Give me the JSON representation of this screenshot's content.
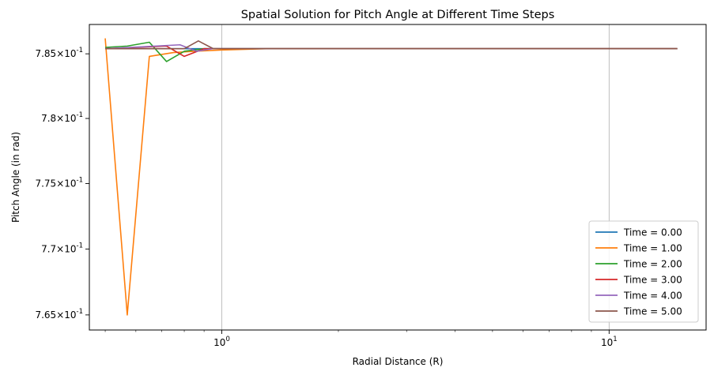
{
  "chart_data": {
    "type": "line",
    "title": "Spatial Solution for Pitch Angle at Different Time Steps",
    "xlabel": "Radial Distance (R)",
    "ylabel": "Pitch Angle (in rad)",
    "xscale": "log",
    "yscale": "log",
    "xlim": [
      0.455,
      17.8
    ],
    "ylim": [
      0.76386,
      0.78728
    ],
    "xticks": [
      {
        "value": 1,
        "label": "10^0"
      },
      {
        "value": 10,
        "label": "10^1"
      }
    ],
    "yticks": [
      {
        "value": 0.765,
        "label": "7.65×10^-1"
      },
      {
        "value": 0.77,
        "label": "7.7×10^-1"
      },
      {
        "value": 0.775,
        "label": "7.75×10^-1"
      },
      {
        "value": 0.78,
        "label": "7.8×10^-1"
      },
      {
        "value": 0.785,
        "label": "7.85×10^-1"
      }
    ],
    "grid": "vertical-major",
    "legend_position": "lower-right",
    "series": [
      {
        "name": "Time = 0.00",
        "color": "#1f77b4",
        "x": [
          0.5,
          15.0
        ],
        "y": [
          0.7854,
          0.7854
        ]
      },
      {
        "name": "Time = 1.00",
        "color": "#ff7f0e",
        "x": [
          0.5,
          0.57,
          0.65,
          0.75,
          0.85,
          1.0,
          1.3,
          15.0
        ],
        "y": [
          0.7862,
          0.765,
          0.7848,
          0.7851,
          0.7852,
          0.7853,
          0.7854,
          0.7854
        ]
      },
      {
        "name": "Time = 2.00",
        "color": "#2ca02c",
        "x": [
          0.5,
          0.57,
          0.65,
          0.72,
          0.8,
          0.9,
          1.0,
          15.0
        ],
        "y": [
          0.7855,
          0.7856,
          0.7859,
          0.7844,
          0.7852,
          0.7854,
          0.7854,
          0.7854
        ]
      },
      {
        "name": "Time = 3.00",
        "color": "#d62728",
        "x": [
          0.5,
          0.72,
          0.8,
          0.9,
          1.0,
          15.0
        ],
        "y": [
          0.7854,
          0.7856,
          0.7848,
          0.7854,
          0.7854,
          0.7854
        ]
      },
      {
        "name": "Time = 4.00",
        "color": "#9467bd",
        "x": [
          0.5,
          0.78,
          0.86,
          0.95,
          15.0
        ],
        "y": [
          0.7854,
          0.7857,
          0.7852,
          0.7854,
          0.7854
        ]
      },
      {
        "name": "Time = 5.00",
        "color": "#8c564b",
        "x": [
          0.5,
          0.8,
          0.87,
          0.95,
          15.0
        ],
        "y": [
          0.7854,
          0.7854,
          0.786,
          0.7854,
          0.7854
        ]
      }
    ]
  }
}
